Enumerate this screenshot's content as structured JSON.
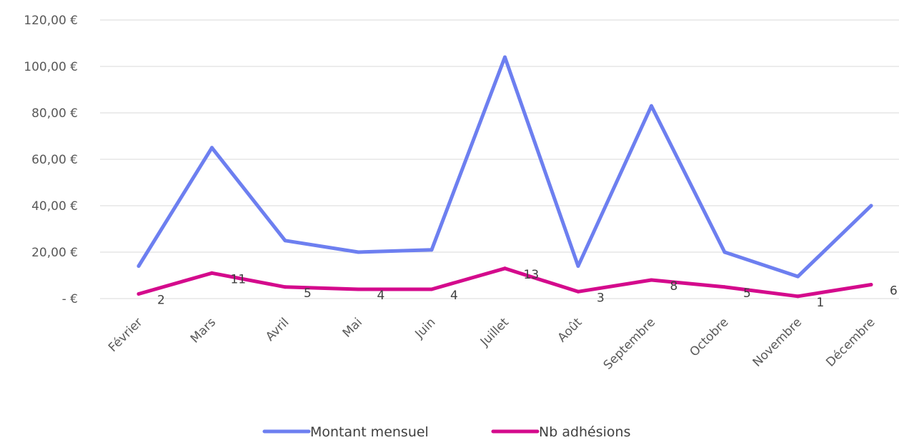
{
  "chart_data": {
    "type": "line",
    "categories": [
      "Février",
      "Mars",
      "Avril",
      "Mai",
      "Juin",
      "Juillet",
      "Août",
      "Septembre",
      "Octobre",
      "Novembre",
      "Décembre"
    ],
    "y_tick_labels": [
      "-   €",
      "20,00 €",
      "40,00 €",
      "60,00 €",
      "80,00 €",
      "100,00 €",
      "120,00 €"
    ],
    "ylim": [
      0,
      120
    ],
    "grid": true,
    "legend_position": "bottom",
    "series": [
      {
        "name": "Montant mensuel",
        "color": "#6d7ff0",
        "values": [
          14,
          65,
          25,
          20,
          21,
          104,
          14,
          83,
          20,
          9.5,
          40
        ]
      },
      {
        "name": "Nb adhésions",
        "color": "#d40a8c",
        "values": [
          2,
          11,
          5,
          4,
          4,
          13,
          3,
          8,
          5,
          1,
          6
        ],
        "data_labels": [
          "2",
          "11",
          "5",
          "4",
          "4",
          "13",
          "3",
          "8",
          "5",
          "1",
          "6"
        ]
      }
    ]
  }
}
